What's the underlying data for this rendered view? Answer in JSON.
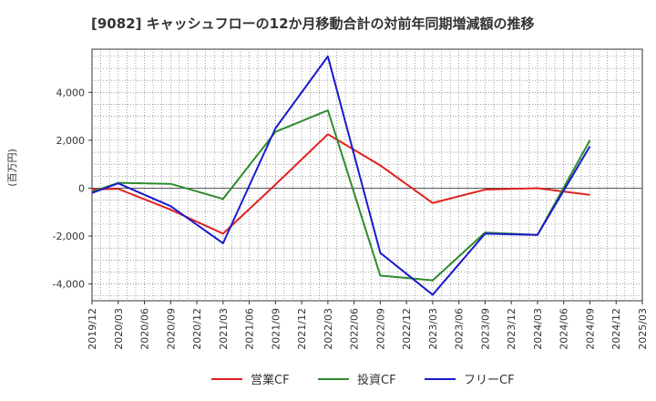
{
  "chart_data": {
    "type": "line",
    "title": "[9082]  キャッシュフローの12か月移動合計の対前年同期増減額の推移",
    "ylabel": "(百万円)",
    "xlabel": "",
    "ylim": [
      -4700,
      5800
    ],
    "yticks": [
      -4000,
      -2000,
      0,
      2000,
      4000
    ],
    "ytick_labels": [
      "-4,000",
      "-2,000",
      "0",
      "2,000",
      "4,000"
    ],
    "categories": [
      "2019/12",
      "2020/03",
      "2020/06",
      "2020/09",
      "2020/12",
      "2021/03",
      "2021/06",
      "2021/09",
      "2021/12",
      "2022/03",
      "2022/06",
      "2022/09",
      "2022/12",
      "2023/03",
      "2023/06",
      "2023/09",
      "2023/12",
      "2024/03",
      "2024/06",
      "2024/09",
      "2024/12",
      "2025/03"
    ],
    "grid": true,
    "legend_position": "bottom",
    "series": [
      {
        "name": "営業CF",
        "color": "#e02020",
        "x": [
          "2019/12",
          "2020/03",
          "2020/09",
          "2021/03",
          "2021/09",
          "2022/03",
          "2022/09",
          "2023/03",
          "2023/09",
          "2024/03",
          "2024/09"
        ],
        "values": [
          -50,
          -30,
          -900,
          -1900,
          150,
          2250,
          950,
          -620,
          -60,
          0,
          -280
        ]
      },
      {
        "name": "投資CF",
        "color": "#2e8b2e",
        "x": [
          "2019/12",
          "2020/03",
          "2020/09",
          "2021/03",
          "2021/09",
          "2022/03",
          "2022/09",
          "2023/03",
          "2023/09",
          "2024/03",
          "2024/09"
        ],
        "values": [
          -150,
          220,
          180,
          -450,
          2350,
          3250,
          -3650,
          -3850,
          -1850,
          -1950,
          2000
        ]
      },
      {
        "name": "フリーCF",
        "color": "#1a1acc",
        "x": [
          "2019/12",
          "2020/03",
          "2020/09",
          "2021/03",
          "2021/09",
          "2022/03",
          "2022/09",
          "2023/03",
          "2023/09",
          "2024/03",
          "2024/09"
        ],
        "values": [
          -200,
          200,
          -750,
          -2300,
          2500,
          5500,
          -2700,
          -4450,
          -1900,
          -1950,
          1750
        ]
      }
    ]
  }
}
